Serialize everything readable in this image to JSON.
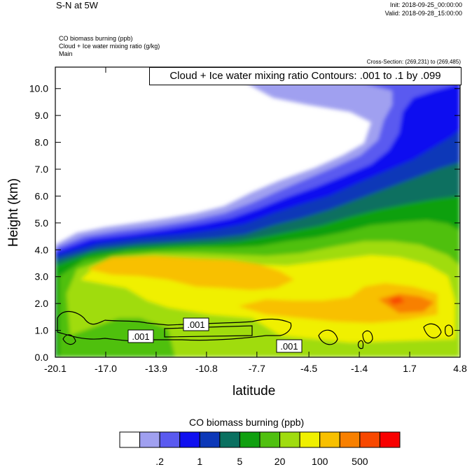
{
  "header": {
    "title": "S-N at 5W",
    "init": "Init: 2018-09-25_00:00:00",
    "valid": "Valid: 2018-09-28_15:00:00",
    "field1": "CO biomass burning   (ppb)",
    "field2": "Cloud + Ice water mixing ratio   (g/kg)",
    "field3": "Main",
    "cross_section": "Cross-Section: (269,231) to (269,485)"
  },
  "chart_data": {
    "type": "heatmap",
    "title": "S-N at 5W",
    "contour_label": "Cloud + Ice water mixing ratio Contours: .001 to .1 by .099",
    "xlabel": "latitude",
    "ylabel": "Height (km)",
    "xlim": [
      -20.1,
      4.8
    ],
    "ylim": [
      0.0,
      10.8
    ],
    "x_ticks": [
      "-20.1",
      "-17.0",
      "-13.9",
      "-10.8",
      "-7.7",
      "-4.5",
      "-1.4",
      "1.7",
      "4.8"
    ],
    "y_ticks": [
      "0.0",
      "1.0",
      "2.0",
      "3.0",
      "4.0",
      "5.0",
      "6.0",
      "7.0",
      "8.0",
      "9.0",
      "10.0"
    ],
    "contour_value_labels": [
      ".001",
      ".001",
      ".001"
    ],
    "colorbar": {
      "title": "CO biomass burning  (ppb)",
      "colors": [
        "#ffffff",
        "#a0a0f0",
        "#5a5af0",
        "#1010f0",
        "#0c38b8",
        "#0a7060",
        "#10a010",
        "#50c010",
        "#a0dc10",
        "#f0f000",
        "#f8c000",
        "#f88000",
        "#f84800",
        "#f80000"
      ],
      "tick_labels": [
        ".2",
        "1",
        "5",
        "20",
        "100",
        "500"
      ]
    }
  }
}
